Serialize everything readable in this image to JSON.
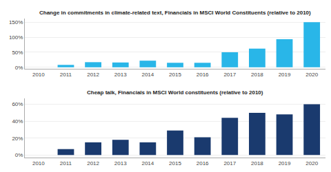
{
  "chart_data": [
    {
      "type": "bar",
      "title": "Change in commitments in climate-related text, Financials in MSCI World Constituents (relative to 2010)",
      "categories": [
        "2010",
        "2011",
        "2012",
        "2013",
        "2014",
        "2015",
        "2016",
        "2017",
        "2018",
        "2019",
        "2020"
      ],
      "values": [
        0,
        8,
        17,
        16,
        22,
        15,
        15,
        50,
        62,
        93,
        150
      ],
      "color": "#29b6e8",
      "ylim": [
        -5,
        162
      ],
      "yticks": [
        {
          "value": 0,
          "label": "0%"
        },
        {
          "value": 50,
          "label": "50%"
        },
        {
          "value": 100,
          "label": "100%"
        },
        {
          "value": 150,
          "label": "150%"
        }
      ],
      "grid": true
    },
    {
      "type": "bar",
      "title": "Cheap talk, Financials in MSCI World constituents (relative to 2010)",
      "categories": [
        "2010",
        "2011",
        "2012",
        "2013",
        "2014",
        "2015",
        "2016",
        "2017",
        "2018",
        "2019",
        "2020"
      ],
      "values": [
        0,
        7,
        15,
        18,
        15,
        29,
        21,
        44,
        50,
        48,
        60
      ],
      "color": "#1a3a6e",
      "ylim": [
        -3,
        67
      ],
      "yticks": [
        {
          "value": 0,
          "label": "0%"
        },
        {
          "value": 20,
          "label": "20%"
        },
        {
          "value": 40,
          "label": "40%"
        },
        {
          "value": 60,
          "label": "60%"
        }
      ],
      "grid": true
    }
  ]
}
